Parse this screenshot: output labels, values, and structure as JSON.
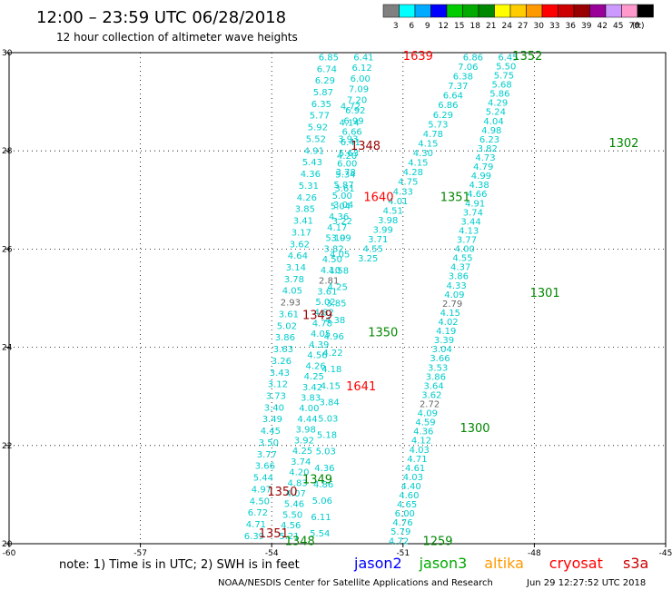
{
  "header": {
    "title": "12:00 – 23:59 UTC 06/28/2018",
    "subtitle": "12 hour collection of altimeter wave heights"
  },
  "legend": {
    "unit": "(ft)",
    "bins": [
      {
        "label": "3",
        "color": "#808080"
      },
      {
        "label": "6",
        "color": "#00ffff"
      },
      {
        "label": "9",
        "color": "#00aaff"
      },
      {
        "label": "12",
        "color": "#0000ff"
      },
      {
        "label": "15",
        "color": "#00cc00"
      },
      {
        "label": "18",
        "color": "#00aa00"
      },
      {
        "label": "21",
        "color": "#008800"
      },
      {
        "label": "24",
        "color": "#ffff00"
      },
      {
        "label": "27",
        "color": "#ffcc00"
      },
      {
        "label": "30",
        "color": "#ff9900"
      },
      {
        "label": "33",
        "color": "#ff0000"
      },
      {
        "label": "36",
        "color": "#cc0000"
      },
      {
        "label": "39",
        "color": "#990000"
      },
      {
        "label": "42",
        "color": "#990099"
      },
      {
        "label": "45",
        "color": "#cc99ff"
      },
      {
        "label": "70",
        "color": "#ff99cc"
      },
      {
        "label": "",
        "color": "#000000"
      }
    ]
  },
  "chart_data": {
    "type": "scatter",
    "xlim": [
      -60,
      -45
    ],
    "ylim": [
      20,
      30
    ],
    "x_ticks": [
      -60,
      -57,
      -54,
      -51,
      -48,
      -45
    ],
    "y_ticks": [
      20,
      22,
      24,
      26,
      28,
      30
    ],
    "y_tick_labels": [
      "20",
      "22",
      "24",
      "26",
      "28",
      "30"
    ],
    "tracks": [
      {
        "satellite": "jason3",
        "color": "#00cccc",
        "lon_start": -54.4,
        "lat_start": 20.15,
        "lon_end": -52.7,
        "lat_end": 29.9,
        "values": [
          "6.39",
          "4.71",
          "6.72",
          "4.50",
          "4.97",
          "5.44",
          "3.66",
          "3.77",
          "3.50",
          "4.45",
          "3.49",
          "3.40",
          "3.73",
          "3.12",
          "3.43",
          "3.26",
          "3.63",
          "3.86",
          "5.02",
          "3.61",
          "2.93",
          "4.05",
          "3.78",
          "3.14",
          "4.64",
          "3.62",
          "3.17",
          "3.41",
          "3.85",
          "4.26",
          "5.31",
          "4.36",
          "5.43",
          "4.91",
          "5.52",
          "5.92",
          "5.77",
          "6.35",
          "5.87",
          "6.29",
          "6.74",
          "6.85"
        ]
      },
      {
        "satellite": "jason3",
        "color": "#00cccc",
        "lon_start": -53.6,
        "lat_start": 20.15,
        "lon_end": -51.9,
        "lat_end": 29.9,
        "values": [
          "5.21",
          "4.56",
          "5.50",
          "5.46",
          "4.07",
          "4.83",
          "4.20",
          "3.74",
          "4.25",
          "3.92",
          "3.98",
          "4.44",
          "4.00",
          "3.83",
          "3.42",
          "4.25",
          "4.26",
          "4.56",
          "4.39",
          "4.05",
          "4.78",
          "4.82",
          "5.02",
          "3.61",
          "2.81",
          "4.10",
          "4.50",
          "3.82",
          "5.19",
          "4.17",
          "4.36",
          "5.04",
          "5.00",
          "5.87",
          "5.34",
          "6.00",
          "5.63",
          "6.41",
          "6.66",
          "6.99",
          "6.92",
          "7.20",
          "7.09",
          "6.00",
          "6.12",
          "6.41"
        ]
      },
      {
        "satellite": "jason3",
        "color": "#00cccc",
        "lon_start": -52.9,
        "lat_start": 20.2,
        "lon_end": -52.2,
        "lat_end": 28.9,
        "values": [
          "5.54",
          "6.11",
          "5.06",
          "4.86",
          "4.36",
          "5.03",
          "5.18",
          "5.03",
          "3.84",
          "4.15",
          "4.18",
          "4.22",
          "4.96",
          "4.38",
          "3.85",
          "4.25",
          "4.58",
          "4.05",
          "3.09",
          "3.22",
          "3.04",
          "3.61",
          "3.78",
          "4.20",
          "3.93",
          "4.14",
          "4.72"
        ]
      },
      {
        "satellite": "jason3",
        "color": "#00cccc",
        "lon_start": -51.1,
        "lat_start": 20.05,
        "lon_end": -48.6,
        "lat_end": 29.9,
        "values": [
          "4.72",
          "5.79",
          "4.76",
          "6.00",
          "4.65",
          "4.60",
          "4.40",
          "4.03",
          "4.61",
          "4.71",
          "4.03",
          "4.12",
          "4.36",
          "4.59",
          "4.09",
          "2.72",
          "3.62",
          "3.64",
          "3.86",
          "3.53",
          "3.66",
          "3.04",
          "3.39",
          "4.19",
          "4.02",
          "4.15",
          "2.79",
          "4.09",
          "4.33",
          "3.86",
          "4.37",
          "4.55",
          "4.00",
          "3.77",
          "4.13",
          "3.44",
          "3.74",
          "4.91",
          "4.66",
          "4.38",
          "4.99",
          "4.79",
          "4.73",
          "3.82",
          "6.23",
          "4.98",
          "4.04",
          "5.24",
          "4.29",
          "5.86",
          "5.68",
          "5.75",
          "5.50",
          "6.45"
        ]
      },
      {
        "satellite": "jason3",
        "color": "#00cccc",
        "lon_start": -51.8,
        "lat_start": 25.8,
        "lon_end": -49.4,
        "lat_end": 29.9,
        "values": [
          "3.25",
          "4.55",
          "3.71",
          "3.99",
          "3.98",
          "4.51",
          "4.01",
          "4.33",
          "4.75",
          "4.28",
          "4.15",
          "4.30",
          "4.15",
          "4.78",
          "5.73",
          "6.29",
          "6.86",
          "6.64",
          "7.37",
          "6.38",
          "7.06",
          "6.86"
        ]
      }
    ],
    "pass_labels": [
      {
        "text": "1639",
        "lon": -51.0,
        "lat": 29.93,
        "color": "#ff0000"
      },
      {
        "text": "1352",
        "lon": -48.5,
        "lat": 29.93,
        "color": "#008800"
      },
      {
        "text": "1348",
        "lon": -52.2,
        "lat": 28.1,
        "color": "#990000"
      },
      {
        "text": "1302",
        "lon": -46.3,
        "lat": 28.15,
        "color": "#008800"
      },
      {
        "text": "1640",
        "lon": -51.9,
        "lat": 27.05,
        "color": "#ff0000"
      },
      {
        "text": "1351",
        "lon": -50.15,
        "lat": 27.05,
        "color": "#008800"
      },
      {
        "text": "1301",
        "lon": -48.1,
        "lat": 25.1,
        "color": "#008800"
      },
      {
        "text": "1349",
        "lon": -53.3,
        "lat": 24.65,
        "color": "#990000"
      },
      {
        "text": "1350",
        "lon": -51.8,
        "lat": 24.3,
        "color": "#008800"
      },
      {
        "text": "1641",
        "lon": -52.3,
        "lat": 23.2,
        "color": "#ff0000"
      },
      {
        "text": "1300",
        "lon": -49.7,
        "lat": 22.35,
        "color": "#008800"
      },
      {
        "text": "1349",
        "lon": -53.3,
        "lat": 21.3,
        "color": "#008800"
      },
      {
        "text": "1350",
        "lon": -54.1,
        "lat": 21.05,
        "color": "#990000"
      },
      {
        "text": "1351",
        "lon": -54.3,
        "lat": 20.2,
        "color": "#990000"
      },
      {
        "text": "1348",
        "lon": -53.7,
        "lat": 20.05,
        "color": "#008800"
      },
      {
        "text": "1259",
        "lon": -50.55,
        "lat": 20.05,
        "color": "#008800"
      }
    ]
  },
  "footer": {
    "note": "note: 1) Time is in UTC; 2) SWH is in feet",
    "satellites": [
      {
        "name": "jason2",
        "color": "#0000ff"
      },
      {
        "name": "jason3",
        "color": "#00aa00"
      },
      {
        "name": "altika",
        "color": "#ff9900"
      },
      {
        "name": "cryosat",
        "color": "#ff0000"
      },
      {
        "name": "s3a",
        "color": "#cc0000"
      }
    ],
    "credit": "NOAA/NESDIS Center for Satellite Applications and Research",
    "timestamp": "Jun 29 12:27:52 UTC 2018"
  }
}
